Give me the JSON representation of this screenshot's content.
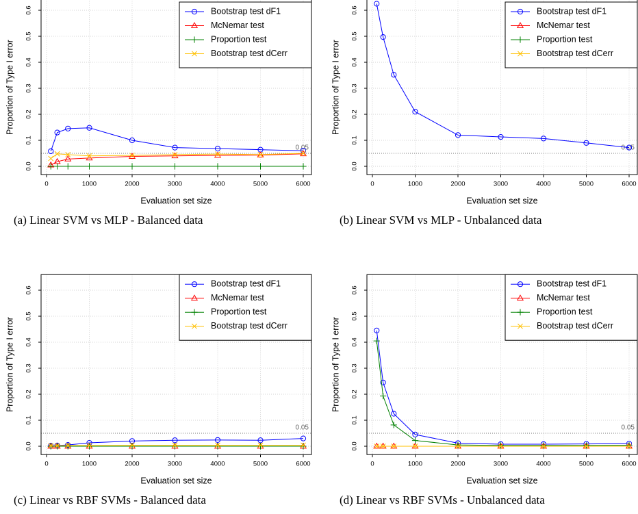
{
  "chart_data": [
    {
      "type": "line",
      "caption": "(a) Linear SVM vs MLP - Balanced data",
      "xlabel": "Evaluation set size",
      "ylabel": "Proportion of Type I error",
      "x": [
        100,
        250,
        500,
        1000,
        2000,
        3000,
        4000,
        5000,
        6000
      ],
      "series": [
        {
          "name": "Bootstrap test dF1",
          "color": "#0000ff",
          "marker": "circle",
          "values": [
            0.058,
            0.13,
            0.145,
            0.148,
            0.1,
            0.072,
            0.068,
            0.064,
            0.06
          ]
        },
        {
          "name": "McNemar test",
          "color": "#ff0000",
          "marker": "triangle",
          "values": [
            0.005,
            0.018,
            0.028,
            0.032,
            0.038,
            0.04,
            0.042,
            0.043,
            0.048
          ]
        },
        {
          "name": "Proportion test",
          "color": "#008000",
          "marker": "plus",
          "values": [
            0,
            0,
            0,
            0,
            0,
            0,
            0,
            0,
            0
          ]
        },
        {
          "name": "Bootstrap test dCerr",
          "color": "#ffc000",
          "marker": "cross",
          "values": [
            0.03,
            0.048,
            0.045,
            0.04,
            0.042,
            0.045,
            0.047,
            0.045,
            0.05
          ]
        }
      ],
      "hline": 0.05,
      "xlim": [
        -128,
        6192
      ],
      "ylim": [
        -0.032,
        0.66
      ],
      "xticks": [
        0,
        1000,
        2000,
        3000,
        4000,
        5000,
        6000
      ],
      "yticks": [
        {
          "value": 0,
          "label": "0.0"
        },
        0.1,
        0.2,
        0.3,
        0.4,
        0.5,
        0.6
      ],
      "grid": true,
      "legend": "topright"
    },
    {
      "type": "line",
      "caption": "(b) Linear SVM vs MLP - Unbalanced data",
      "xlabel": "Evaluation set size",
      "ylabel": "Proportion of Type I error",
      "x": [
        100,
        250,
        500,
        1000,
        2000,
        3000,
        4000,
        5000,
        6000
      ],
      "series": [
        {
          "name": "Bootstrap test dF1",
          "color": "#0000ff",
          "marker": "circle",
          "values": [
            0.625,
            0.497,
            0.352,
            0.21,
            0.12,
            0.113,
            0.107,
            0.09,
            0.072
          ]
        },
        {
          "name": "McNemar test",
          "color": "#ff0000",
          "marker": "triangle",
          "values": [
            null,
            null,
            null,
            null,
            null,
            null,
            null,
            null,
            null
          ]
        },
        {
          "name": "Proportion test",
          "color": "#008000",
          "marker": "plus",
          "values": [
            null,
            null,
            null,
            null,
            null,
            null,
            null,
            null,
            null
          ]
        },
        {
          "name": "Bootstrap test dCerr",
          "color": "#ffc000",
          "marker": "cross",
          "values": [
            null,
            null,
            null,
            null,
            null,
            null,
            null,
            null,
            null
          ]
        }
      ],
      "hline": 0.05,
      "xlim": [
        -128,
        6192
      ],
      "ylim": [
        -0.032,
        0.66
      ],
      "xticks": [
        0,
        1000,
        2000,
        3000,
        4000,
        5000,
        6000
      ],
      "yticks": [
        {
          "value": 0,
          "label": "0.0"
        },
        0.1,
        0.2,
        0.3,
        0.4,
        0.5,
        0.6
      ],
      "grid": true,
      "legend": "topright"
    },
    {
      "type": "line",
      "caption": "(c) Linear vs RBF SVMs - Balanced data",
      "xlabel": "Evaluation set size",
      "ylabel": "Proportion of Type I error",
      "x": [
        100,
        250,
        500,
        1000,
        2000,
        3000,
        4000,
        5000,
        6000
      ],
      "series": [
        {
          "name": "Bootstrap test dF1",
          "color": "#0000ff",
          "marker": "circle",
          "values": [
            0.002,
            0.003,
            0.005,
            0.013,
            0.02,
            0.023,
            0.024,
            0.023,
            0.03
          ]
        },
        {
          "name": "McNemar test",
          "color": "#ff0000",
          "marker": "triangle",
          "values": [
            0,
            0,
            0,
            0,
            0,
            0,
            0,
            0,
            0
          ]
        },
        {
          "name": "Proportion test",
          "color": "#008000",
          "marker": "plus",
          "values": [
            0,
            0,
            0,
            0,
            0,
            0,
            0,
            0,
            0
          ]
        },
        {
          "name": "Bootstrap test dCerr",
          "color": "#ffc000",
          "marker": "cross",
          "values": [
            0.002,
            0.002,
            0.003,
            0.003,
            0.004,
            0.004,
            0.004,
            0.004,
            0.004
          ]
        }
      ],
      "hline": 0.05,
      "xlim": [
        -128,
        6192
      ],
      "ylim": [
        -0.032,
        0.66
      ],
      "xticks": [
        0,
        1000,
        2000,
        3000,
        4000,
        5000,
        6000
      ],
      "yticks": [
        {
          "value": 0,
          "label": "0.0"
        },
        0.1,
        0.2,
        0.3,
        0.4,
        0.5,
        0.6
      ],
      "grid": true,
      "legend": "topright"
    },
    {
      "type": "line",
      "caption": "(d) Linear vs RBF SVMs - Unbalanced data",
      "xlabel": "Evaluation set size",
      "ylabel": "Proportion of Type I error",
      "x": [
        100,
        250,
        500,
        1000,
        2000,
        3000,
        4000,
        5000,
        6000
      ],
      "series": [
        {
          "name": "Bootstrap test dF1",
          "color": "#0000ff",
          "marker": "circle",
          "values": [
            0.445,
            0.245,
            0.125,
            0.045,
            0.012,
            0.008,
            0.008,
            0.009,
            0.01
          ]
        },
        {
          "name": "McNemar test",
          "color": "#ff0000",
          "marker": "triangle",
          "values": [
            0,
            0,
            0,
            0,
            0,
            0,
            0,
            0,
            0
          ]
        },
        {
          "name": "Proportion test",
          "color": "#008000",
          "marker": "plus",
          "values": [
            0.405,
            0.193,
            0.082,
            0.022,
            0.005,
            0.003,
            0.003,
            0.003,
            0.004
          ]
        },
        {
          "name": "Bootstrap test dCerr",
          "color": "#ffc000",
          "marker": "cross",
          "values": [
            0,
            0,
            0,
            0,
            0,
            0,
            0,
            0,
            0
          ]
        }
      ],
      "hline": 0.05,
      "xlim": [
        -128,
        6192
      ],
      "ylim": [
        -0.032,
        0.66
      ],
      "xticks": [
        0,
        1000,
        2000,
        3000,
        4000,
        5000,
        6000
      ],
      "yticks": [
        {
          "value": 0,
          "label": "0.0"
        },
        0.1,
        0.2,
        0.3,
        0.4,
        0.5,
        0.6
      ],
      "grid": true,
      "legend": "topright"
    }
  ]
}
